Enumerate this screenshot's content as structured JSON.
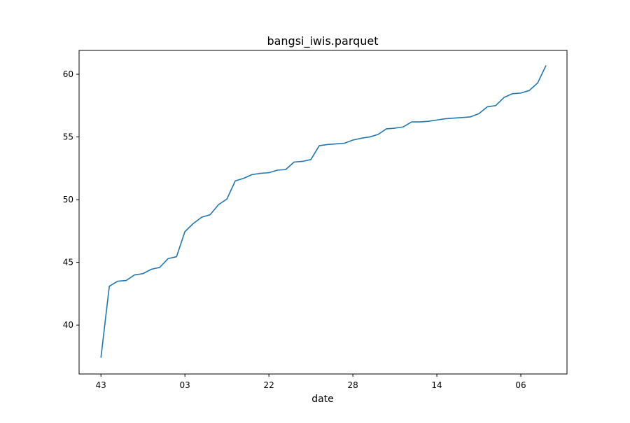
{
  "chart_data": {
    "type": "line",
    "title": "bangsi_iwis.parquet",
    "xlabel": "date",
    "ylabel": "",
    "x_ticks": [
      {
        "x": 0,
        "label": "43"
      },
      {
        "x": 10,
        "label": "03"
      },
      {
        "x": 20,
        "label": "22"
      },
      {
        "x": 30,
        "label": "28"
      },
      {
        "x": 40,
        "label": "14"
      },
      {
        "x": 50,
        "label": "06"
      }
    ],
    "y_ticks": [
      40,
      45,
      50,
      55,
      60
    ],
    "xlim": [
      -2.6,
      55.5
    ],
    "ylim": [
      36.1,
      61.9
    ],
    "grid": false,
    "color": "#1f77b4",
    "series": [
      {
        "x": [
          0,
          1,
          2,
          3,
          4,
          5,
          6,
          7,
          8,
          9,
          10,
          11,
          12,
          13,
          14,
          15,
          16,
          17,
          18,
          19,
          20,
          21,
          22,
          23,
          24,
          25,
          26,
          27,
          28,
          29,
          30,
          31,
          32,
          33,
          34,
          35,
          36,
          37,
          38,
          39,
          40,
          41,
          42,
          43,
          44,
          45,
          46,
          47,
          48,
          49,
          50,
          51,
          52,
          53
        ],
        "values": [
          37.4,
          43.1,
          43.5,
          43.55,
          44.0,
          44.1,
          44.45,
          44.6,
          45.3,
          45.45,
          47.45,
          48.1,
          48.6,
          48.8,
          49.6,
          50.05,
          51.5,
          51.7,
          52.0,
          52.1,
          52.15,
          52.35,
          52.4,
          53.0,
          53.05,
          53.2,
          54.3,
          54.4,
          54.45,
          54.5,
          54.75,
          54.9,
          55.0,
          55.2,
          55.65,
          55.7,
          55.8,
          56.2,
          56.2,
          56.25,
          56.35,
          56.45,
          56.5,
          56.55,
          56.6,
          56.85,
          57.4,
          57.5,
          58.15,
          58.45,
          58.5,
          58.7,
          59.3,
          60.7
        ]
      }
    ]
  }
}
